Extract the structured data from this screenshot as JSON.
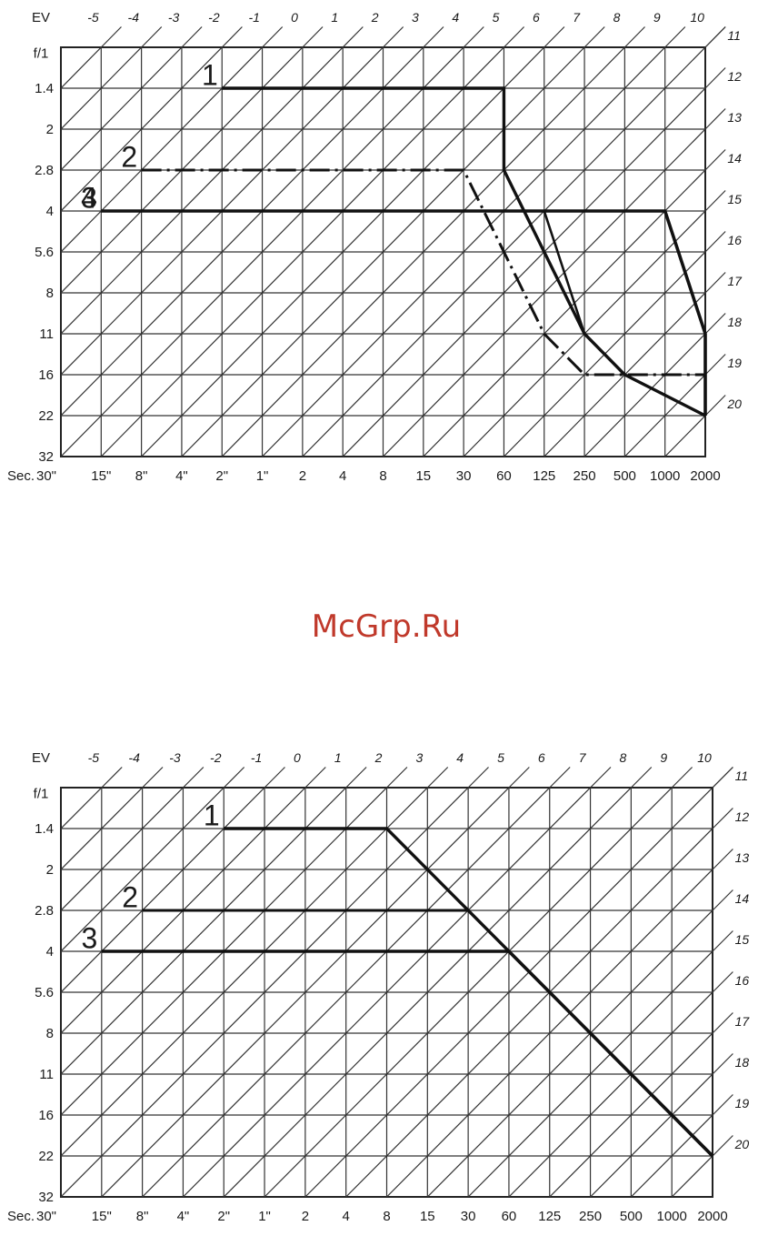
{
  "watermark": "McGrp.Ru",
  "chart_data": [
    {
      "type": "line",
      "title": "",
      "ev_label": "EV",
      "fstop_label": "f/1",
      "shutter_label": "Sec.",
      "x_ticks": [
        "30\"",
        "15\"",
        "8\"",
        "4\"",
        "2\"",
        "1\"",
        "2",
        "4",
        "8",
        "15",
        "30",
        "60",
        "125",
        "250",
        "500",
        "1000",
        "2000"
      ],
      "y_ticks": [
        "1.4",
        "2",
        "2.8",
        "4",
        "5.6",
        "8",
        "11",
        "16",
        "22",
        "32"
      ],
      "ev_top": [
        "-5",
        "-4",
        "-3",
        "-2",
        "-1",
        "0",
        "1",
        "2",
        "3",
        "4",
        "5",
        "6",
        "7",
        "8",
        "9",
        "10"
      ],
      "ev_right": [
        "11",
        "12",
        "13",
        "14",
        "15",
        "16",
        "17",
        "18",
        "19",
        "20"
      ],
      "grid": true,
      "series": [
        {
          "name": "1",
          "points": [
            [
              "2\"",
              1.4
            ],
            [
              "60",
              1.4
            ],
            [
              "60",
              2.8
            ],
            [
              "250",
              11
            ],
            [
              "500",
              16
            ],
            [
              "2000",
              22
            ]
          ]
        },
        {
          "name": "2",
          "points": [
            [
              "8\"",
              2.8
            ],
            [
              "30",
              2.8
            ],
            [
              "125",
              11
            ],
            [
              "250",
              16
            ],
            [
              "500",
              16
            ],
            [
              "2000",
              16
            ]
          ]
        },
        {
          "name": "3",
          "points": [
            [
              "15\"",
              4
            ],
            [
              "1000",
              4
            ],
            [
              "2000",
              11
            ],
            [
              "2000",
              22
            ]
          ]
        },
        {
          "name": "4",
          "points": [
            [
              "15\"",
              4
            ],
            [
              "125",
              4
            ],
            [
              "250",
              11
            ],
            [
              "500",
              16
            ],
            [
              "2000",
              22
            ]
          ]
        }
      ]
    },
    {
      "type": "line",
      "title": "",
      "ev_label": "EV",
      "fstop_label": "f/1",
      "shutter_label": "Sec.",
      "x_ticks": [
        "30\"",
        "15\"",
        "8\"",
        "4\"",
        "2\"",
        "1\"",
        "2",
        "4",
        "8",
        "15",
        "30",
        "60",
        "125",
        "250",
        "500",
        "1000",
        "2000"
      ],
      "y_ticks": [
        "1.4",
        "2",
        "2.8",
        "4",
        "5.6",
        "8",
        "11",
        "16",
        "22",
        "32"
      ],
      "ev_top": [
        "-5",
        "-4",
        "-3",
        "-2",
        "-1",
        "0",
        "1",
        "2",
        "3",
        "4",
        "5",
        "6",
        "7",
        "8",
        "9",
        "10"
      ],
      "ev_right": [
        "11",
        "12",
        "13",
        "14",
        "15",
        "16",
        "17",
        "18",
        "19",
        "20"
      ],
      "grid": true,
      "series": [
        {
          "name": "1",
          "points": [
            [
              "2\"",
              1.4
            ],
            [
              "8",
              1.4
            ],
            [
              "2000",
              22
            ]
          ]
        },
        {
          "name": "2",
          "points": [
            [
              "8\"",
              2.8
            ],
            [
              "30",
              2.8
            ],
            [
              "2000",
              22
            ]
          ]
        },
        {
          "name": "3",
          "points": [
            [
              "15\"",
              4
            ],
            [
              "60",
              4
            ],
            [
              "2000",
              22
            ]
          ]
        }
      ]
    }
  ]
}
